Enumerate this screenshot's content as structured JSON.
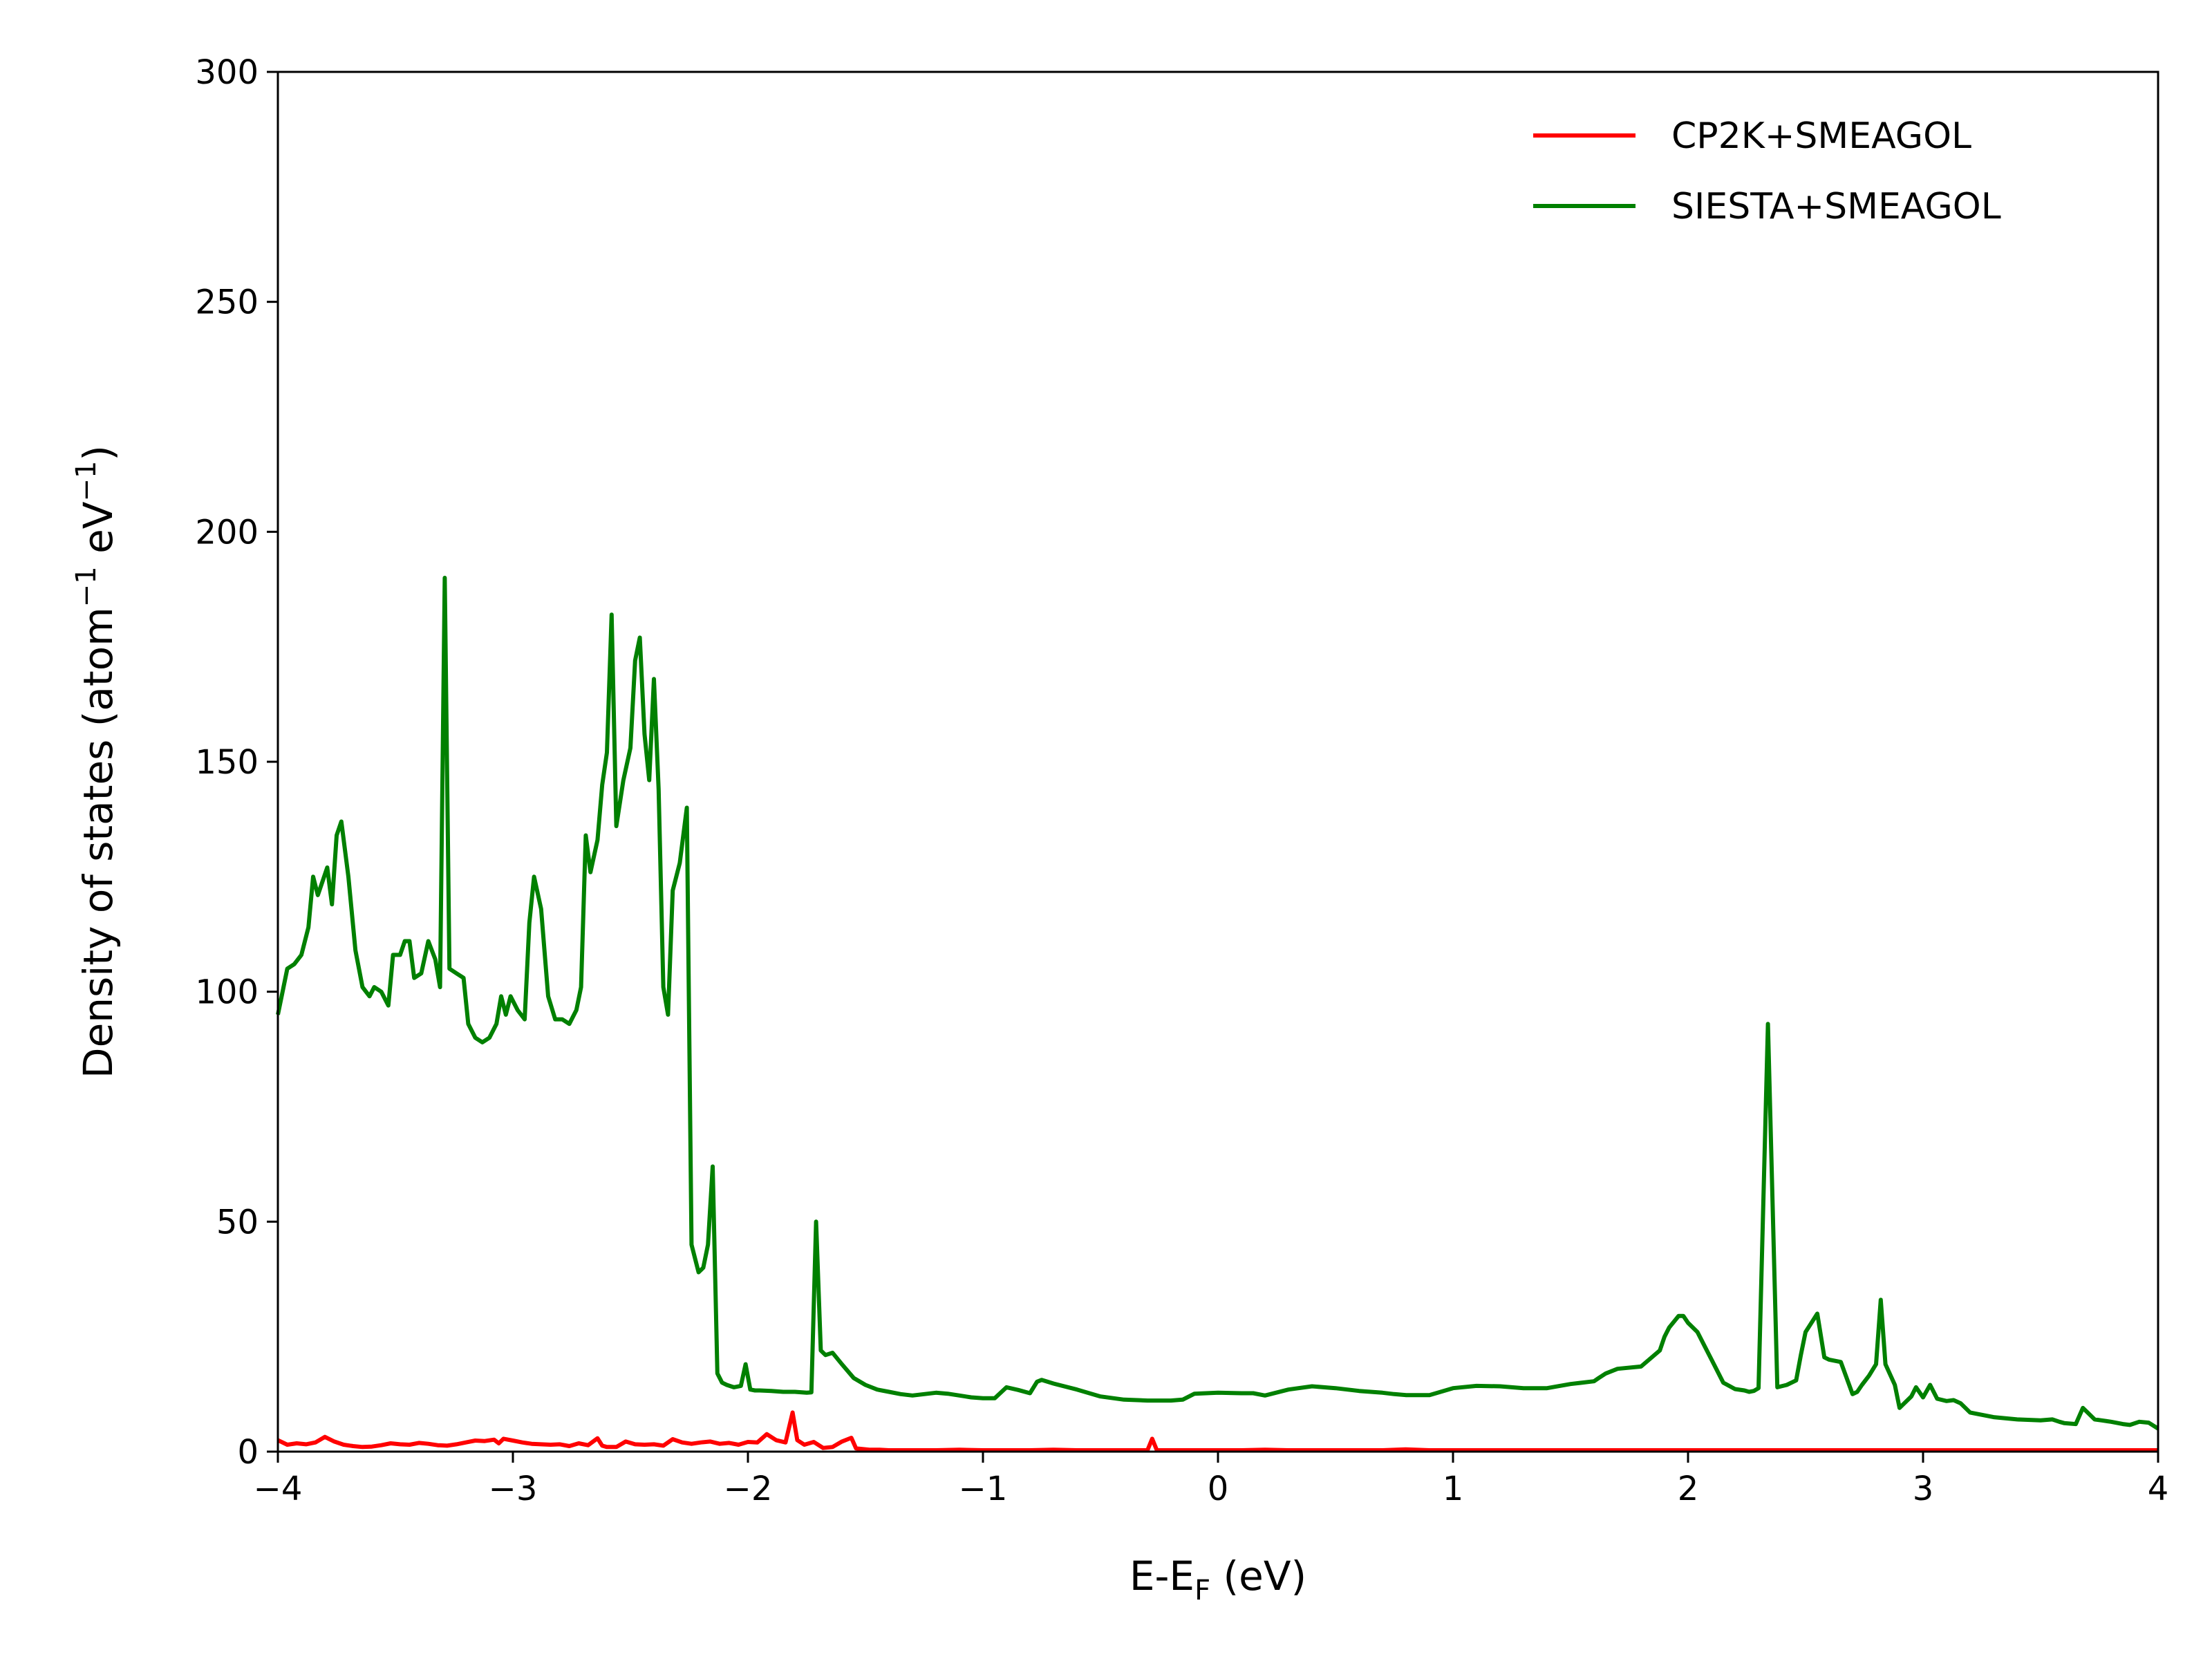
{
  "chart_data": {
    "type": "line",
    "title": "",
    "xlabel": {
      "main": "E-E",
      "sub": "F",
      "tail": " (eV)"
    },
    "ylabel": {
      "p1": "Density of states (atom",
      "sup1": "−1",
      "p2": " eV",
      "sup2": "−1",
      "p3": ")"
    },
    "xlim": [
      -4,
      4
    ],
    "ylim": [
      0,
      300
    ],
    "xticks": [
      {
        "value": -4,
        "label": "−4"
      },
      {
        "value": -3,
        "label": "−3"
      },
      {
        "value": -2,
        "label": "−2"
      },
      {
        "value": -1,
        "label": "−1"
      },
      {
        "value": 0,
        "label": "0"
      },
      {
        "value": 1,
        "label": "1"
      },
      {
        "value": 2,
        "label": "2"
      },
      {
        "value": 3,
        "label": "3"
      },
      {
        "value": 4,
        "label": "4"
      }
    ],
    "yticks": [
      {
        "value": 0,
        "label": "0"
      },
      {
        "value": 50,
        "label": "50"
      },
      {
        "value": 100,
        "label": "100"
      },
      {
        "value": 150,
        "label": "150"
      },
      {
        "value": 200,
        "label": "200"
      },
      {
        "value": 250,
        "label": "250"
      },
      {
        "value": 300,
        "label": "300"
      }
    ],
    "grid": false,
    "legend_position": "top-right",
    "series": [
      {
        "name": "CP2K+SMEAGOL",
        "color": "#ff0000",
        "x": [
          -4.0,
          -3.96,
          -3.92,
          -3.88,
          -3.84,
          -3.8,
          -3.76,
          -3.72,
          -3.68,
          -3.64,
          -3.6,
          -3.56,
          -3.52,
          -3.48,
          -3.44,
          -3.4,
          -3.36,
          -3.32,
          -3.28,
          -3.24,
          -3.2,
          -3.16,
          -3.12,
          -3.08,
          -3.06,
          -3.04,
          -3.0,
          -2.96,
          -2.92,
          -2.88,
          -2.84,
          -2.8,
          -2.76,
          -2.72,
          -2.68,
          -2.64,
          -2.62,
          -2.6,
          -2.56,
          -2.52,
          -2.48,
          -2.44,
          -2.4,
          -2.36,
          -2.32,
          -2.28,
          -2.24,
          -2.2,
          -2.16,
          -2.12,
          -2.08,
          -2.04,
          -2.0,
          -1.96,
          -1.92,
          -1.88,
          -1.84,
          -1.81,
          -1.79,
          -1.76,
          -1.72,
          -1.68,
          -1.64,
          -1.6,
          -1.56,
          -1.54,
          -1.52,
          -1.48,
          -1.44,
          -1.4,
          -1.3,
          -1.2,
          -1.1,
          -1.0,
          -0.9,
          -0.8,
          -0.7,
          -0.6,
          -0.5,
          -0.4,
          -0.3,
          -0.28,
          -0.26,
          -0.2,
          -0.1,
          0.0,
          0.1,
          0.2,
          0.3,
          0.4,
          0.5,
          0.6,
          0.7,
          0.8,
          0.9,
          1.0,
          1.2,
          1.4,
          1.6,
          1.8,
          2.0,
          2.2,
          2.4,
          2.6,
          2.8,
          3.0,
          3.2,
          3.4,
          3.6,
          3.8,
          4.0
        ],
        "y": [
          2.5,
          1.5,
          1.8,
          1.6,
          2.0,
          3.2,
          2.2,
          1.5,
          1.2,
          1.0,
          1.1,
          1.4,
          1.8,
          1.6,
          1.5,
          1.9,
          1.7,
          1.4,
          1.3,
          1.6,
          2.0,
          2.4,
          2.3,
          2.6,
          1.8,
          2.8,
          2.4,
          2.0,
          1.7,
          1.6,
          1.5,
          1.6,
          1.2,
          1.8,
          1.4,
          2.9,
          1.3,
          1.0,
          1.0,
          2.2,
          1.6,
          1.5,
          1.6,
          1.3,
          2.7,
          2.0,
          1.7,
          2.0,
          2.2,
          1.7,
          1.9,
          1.5,
          2.1,
          2.0,
          3.8,
          2.5,
          2.0,
          8.5,
          2.5,
          1.5,
          2.1,
          0.8,
          1.0,
          2.2,
          3.0,
          0.7,
          0.6,
          0.4,
          0.4,
          0.3,
          0.3,
          0.3,
          0.4,
          0.3,
          0.3,
          0.3,
          0.4,
          0.3,
          0.3,
          0.3,
          0.3,
          2.8,
          0.3,
          0.3,
          0.3,
          0.3,
          0.3,
          0.4,
          0.3,
          0.3,
          0.3,
          0.3,
          0.3,
          0.5,
          0.3,
          0.3,
          0.3,
          0.3,
          0.3,
          0.3,
          0.3,
          0.3,
          0.3,
          0.3,
          0.3,
          0.3,
          0.3,
          0.3,
          0.3,
          0.3,
          0.3
        ]
      },
      {
        "name": "SIESTA+SMEAGOL",
        "color": "#008000",
        "x": [
          -4.0,
          -3.96,
          -3.93,
          -3.9,
          -3.87,
          -3.85,
          -3.83,
          -3.81,
          -3.79,
          -3.77,
          -3.75,
          -3.73,
          -3.7,
          -3.67,
          -3.64,
          -3.61,
          -3.59,
          -3.56,
          -3.53,
          -3.51,
          -3.48,
          -3.46,
          -3.44,
          -3.42,
          -3.39,
          -3.36,
          -3.33,
          -3.31,
          -3.29,
          -3.27,
          -3.24,
          -3.21,
          -3.19,
          -3.16,
          -3.13,
          -3.1,
          -3.07,
          -3.05,
          -3.03,
          -3.01,
          -2.98,
          -2.95,
          -2.93,
          -2.91,
          -2.88,
          -2.85,
          -2.82,
          -2.79,
          -2.76,
          -2.73,
          -2.71,
          -2.69,
          -2.67,
          -2.64,
          -2.62,
          -2.6,
          -2.58,
          -2.56,
          -2.53,
          -2.5,
          -2.48,
          -2.46,
          -2.44,
          -2.42,
          -2.4,
          -2.38,
          -2.36,
          -2.34,
          -2.32,
          -2.29,
          -2.26,
          -2.24,
          -2.21,
          -2.19,
          -2.17,
          -2.15,
          -2.13,
          -2.11,
          -2.09,
          -2.06,
          -2.03,
          -2.01,
          -1.99,
          -1.97,
          -1.95,
          -1.9,
          -1.85,
          -1.8,
          -1.75,
          -1.73,
          -1.71,
          -1.69,
          -1.67,
          -1.64,
          -1.6,
          -1.55,
          -1.5,
          -1.45,
          -1.4,
          -1.35,
          -1.3,
          -1.25,
          -1.2,
          -1.15,
          -1.1,
          -1.05,
          -1.0,
          -0.95,
          -0.9,
          -0.85,
          -0.8,
          -0.77,
          -0.75,
          -0.7,
          -0.6,
          -0.5,
          -0.4,
          -0.3,
          -0.2,
          -0.15,
          -0.1,
          0.0,
          0.1,
          0.15,
          0.2,
          0.3,
          0.4,
          0.5,
          0.6,
          0.7,
          0.75,
          0.8,
          0.9,
          1.0,
          1.1,
          1.2,
          1.25,
          1.3,
          1.4,
          1.5,
          1.6,
          1.62,
          1.65,
          1.7,
          1.8,
          1.88,
          1.9,
          1.92,
          1.96,
          1.98,
          2.0,
          2.04,
          2.08,
          2.1,
          2.15,
          2.2,
          2.24,
          2.26,
          2.28,
          2.3,
          2.34,
          2.38,
          2.42,
          2.46,
          2.48,
          2.5,
          2.55,
          2.58,
          2.6,
          2.65,
          2.7,
          2.72,
          2.74,
          2.77,
          2.8,
          2.82,
          2.84,
          2.88,
          2.9,
          2.92,
          2.95,
          2.97,
          3.0,
          3.03,
          3.06,
          3.1,
          3.13,
          3.16,
          3.2,
          3.3,
          3.4,
          3.5,
          3.55,
          3.58,
          3.6,
          3.65,
          3.68,
          3.7,
          3.73,
          3.76,
          3.8,
          3.85,
          3.88,
          3.92,
          3.96,
          4.0
        ],
        "y": [
          95,
          105,
          106,
          108,
          114,
          125,
          121,
          124,
          127,
          119,
          134,
          137,
          125,
          109,
          101,
          99,
          101,
          100,
          97,
          108,
          108,
          111,
          111,
          103,
          104,
          111,
          107,
          101,
          190,
          105,
          104,
          103,
          93,
          90,
          89,
          90,
          93,
          99,
          95,
          99,
          96,
          94,
          115,
          125,
          118,
          99,
          94,
          94,
          93,
          96,
          101,
          134,
          126,
          133,
          145,
          152,
          182,
          136,
          146,
          153,
          172,
          177,
          156,
          146,
          168,
          144,
          101,
          95,
          122,
          128,
          140,
          45,
          39,
          40,
          45,
          62,
          17,
          15,
          14.5,
          14,
          14.3,
          19,
          13.5,
          13.3,
          13.3,
          13.2,
          13.0,
          13.0,
          12.8,
          12.9,
          50,
          22,
          21,
          21.5,
          19,
          16,
          14.5,
          13.5,
          13,
          12.5,
          12.2,
          12.5,
          12.8,
          12.6,
          12.2,
          11.8,
          11.6,
          11.6,
          14,
          13.4,
          12.7,
          15.2,
          15.6,
          14.8,
          13.5,
          12,
          11.3,
          11.1,
          11.1,
          11.3,
          12.6,
          12.8,
          12.7,
          12.7,
          12.2,
          13.5,
          14.2,
          13.8,
          13.2,
          12.8,
          12.5,
          12.3,
          12.3,
          13.8,
          14.3,
          14.2,
          14.0,
          13.8,
          13.8,
          14.7,
          15.3,
          16.0,
          17.0,
          18.0,
          18.5,
          22,
          25,
          27,
          29.5,
          29.5,
          28,
          26,
          22,
          20,
          15,
          13.6,
          13.3,
          13.0,
          13.2,
          13.8,
          93,
          14,
          14.5,
          15.5,
          21,
          26,
          30,
          20.5,
          20,
          19.5,
          12.5,
          13.0,
          14.5,
          16.5,
          19,
          33,
          19,
          14.5,
          9.5,
          10.5,
          12,
          14,
          11.8,
          14.5,
          11.5,
          11,
          11.2,
          10.5,
          8.5,
          7.5,
          7.0,
          6.8,
          7.0,
          6.5,
          6.2,
          6.0,
          9.5,
          8.5,
          7.0,
          6.8,
          6.5,
          6.0,
          5.8,
          6.5,
          6.3,
          5.0
        ]
      }
    ]
  }
}
